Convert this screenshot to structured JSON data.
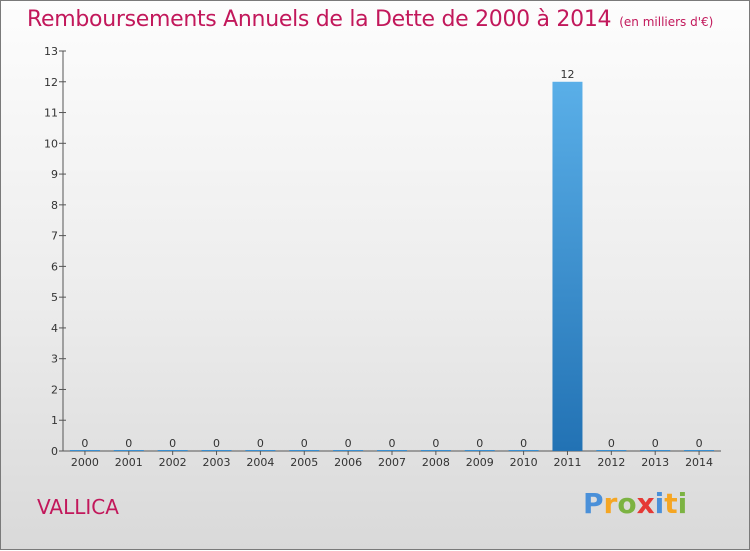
{
  "title": "Remboursements Annuels de la Dette de 2000 à 2014",
  "unit_note": "(en milliers d'€)",
  "commune": "VALLICA",
  "logo": {
    "letters": [
      "P",
      "r",
      "o",
      "x",
      "i",
      "t",
      "i"
    ],
    "colors": [
      "#4a90d9",
      "#f5a623",
      "#7cb342",
      "#e53935",
      "#4a90d9",
      "#f5a623",
      "#7cb342"
    ]
  },
  "chart_data": {
    "type": "bar",
    "categories": [
      "2000",
      "2001",
      "2002",
      "2003",
      "2004",
      "2005",
      "2006",
      "2007",
      "2008",
      "2009",
      "2010",
      "2011",
      "2012",
      "2013",
      "2014"
    ],
    "values": [
      0,
      0,
      0,
      0,
      0,
      0,
      0,
      0,
      0,
      0,
      0,
      12,
      0,
      0,
      0
    ],
    "data_labels": [
      "0",
      "0",
      "0",
      "0",
      "0",
      "0",
      "0",
      "0",
      "0",
      "0",
      "0",
      "12",
      "0",
      "0",
      "0"
    ],
    "ylim": [
      0,
      13
    ],
    "yticks": [
      0,
      1,
      2,
      3,
      4,
      5,
      6,
      7,
      8,
      9,
      10,
      11,
      12,
      13
    ],
    "bar_color": "#3a8fd1",
    "grid": false
  }
}
